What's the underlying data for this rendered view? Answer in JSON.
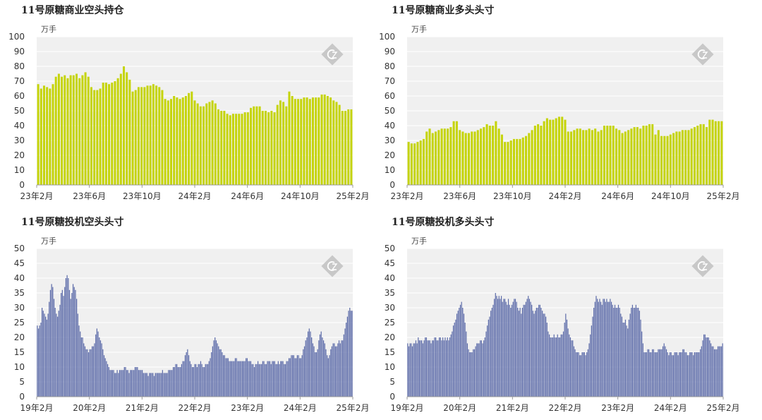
{
  "chart_data": [
    {
      "type": "bar",
      "title": "11号原糖商业空头持仓",
      "unit": "万手",
      "ylim": [
        0,
        100
      ],
      "yticks": [
        0,
        10,
        20,
        30,
        40,
        50,
        60,
        70,
        80,
        90,
        100
      ],
      "xticks": [
        "23年2月",
        "23年6月",
        "23年10月",
        "24年2月",
        "24年6月",
        "24年10月",
        "25年2月"
      ],
      "x_start": "2023-02",
      "x_end": "2025-02",
      "frequency": "weekly",
      "grid": true,
      "color": "#c5d40a",
      "values": [
        68,
        65,
        67,
        66,
        65,
        68,
        73,
        75,
        73,
        74,
        72,
        74,
        74,
        75,
        72,
        74,
        76,
        73,
        66,
        64,
        64,
        65,
        69,
        69,
        68,
        69,
        70,
        72,
        75,
        80,
        76,
        71,
        63,
        64,
        66,
        66,
        66,
        67,
        67,
        68,
        67,
        66,
        64,
        58,
        57,
        58,
        60,
        59,
        58,
        59,
        60,
        62,
        63,
        57,
        55,
        53,
        53,
        55,
        56,
        57,
        55,
        51,
        50,
        50,
        48,
        47,
        48,
        48,
        48,
        48,
        49,
        49,
        52,
        53,
        53,
        53,
        50,
        50,
        49,
        50,
        49,
        54,
        57,
        56,
        53,
        63,
        60,
        58,
        58,
        58,
        59,
        59,
        58,
        59,
        59,
        59,
        61,
        61,
        60,
        59,
        57,
        56,
        54,
        50,
        50,
        51,
        51
      ]
    },
    {
      "type": "bar",
      "title": "11号原糖商业多头头寸",
      "unit": "万手",
      "ylim": [
        0,
        100
      ],
      "yticks": [
        0,
        10,
        20,
        30,
        40,
        50,
        60,
        70,
        80,
        90,
        100
      ],
      "xticks": [
        "23年2月",
        "23年6月",
        "23年10月",
        "24年2月",
        "24年6月",
        "24年10月",
        "25年2月"
      ],
      "x_start": "2023-02",
      "x_end": "2025-02",
      "frequency": "weekly",
      "grid": true,
      "color": "#c5d40a",
      "values": [
        29,
        28,
        28,
        29,
        30,
        31,
        36,
        38,
        35,
        36,
        37,
        38,
        38,
        38,
        39,
        43,
        43,
        37,
        36,
        35,
        35,
        36,
        36,
        37,
        38,
        39,
        41,
        40,
        40,
        43,
        38,
        34,
        29,
        29,
        30,
        31,
        31,
        31,
        32,
        33,
        35,
        37,
        40,
        41,
        40,
        43,
        45,
        44,
        44,
        45,
        46,
        46,
        44,
        36,
        36,
        37,
        38,
        38,
        37,
        37,
        38,
        37,
        38,
        36,
        37,
        40,
        40,
        40,
        40,
        38,
        37,
        35,
        36,
        37,
        38,
        39,
        39,
        38,
        40,
        40,
        41,
        41,
        34,
        37,
        33,
        33,
        33,
        34,
        35,
        36,
        36,
        37,
        37,
        37,
        38,
        39,
        40,
        41,
        41,
        39,
        44,
        44,
        43,
        43,
        43
      ]
    },
    {
      "type": "bar",
      "title": "11号原糖投机空头头寸",
      "unit": "万手",
      "ylim": [
        0,
        50
      ],
      "yticks": [
        0,
        5,
        10,
        15,
        20,
        25,
        30,
        35,
        40,
        45,
        50
      ],
      "xticks": [
        "19年2月",
        "20年2月",
        "21年2月",
        "22年2月",
        "23年2月",
        "24年2月",
        "25年2月"
      ],
      "x_start": "2019-02",
      "x_end": "2025-02",
      "frequency": "weekly",
      "grid": true,
      "color": "#5b6aa8",
      "values": [
        24,
        23,
        24,
        25,
        30,
        29,
        28,
        27,
        26,
        28,
        32,
        36,
        38,
        37,
        33,
        30,
        28,
        27,
        29,
        31,
        35,
        36,
        34,
        37,
        40,
        41,
        40,
        36,
        33,
        35,
        38,
        37,
        36,
        33,
        28,
        24,
        22,
        20,
        20,
        18,
        17,
        16,
        16,
        15,
        16,
        16,
        17,
        17,
        18,
        21,
        23,
        22,
        20,
        19,
        18,
        16,
        14,
        13,
        12,
        11,
        10,
        9,
        9,
        9,
        9,
        8,
        8,
        9,
        8,
        9,
        9,
        9,
        9,
        10,
        10,
        9,
        9,
        8,
        9,
        9,
        9,
        9,
        10,
        10,
        10,
        9,
        9,
        9,
        9,
        8,
        8,
        8,
        8,
        7,
        8,
        8,
        8,
        8,
        7,
        8,
        8,
        8,
        8,
        8,
        8,
        9,
        8,
        8,
        8,
        8,
        9,
        9,
        9,
        9,
        10,
        10,
        11,
        11,
        10,
        10,
        10,
        11,
        12,
        12,
        14,
        15,
        16,
        14,
        12,
        11,
        10,
        10,
        11,
        11,
        10,
        11,
        11,
        12,
        11,
        10,
        10,
        11,
        11,
        11,
        12,
        13,
        15,
        17,
        19,
        20,
        19,
        18,
        17,
        16,
        16,
        15,
        14,
        14,
        13,
        13,
        13,
        12,
        12,
        12,
        12,
        12,
        13,
        13,
        12,
        12,
        12,
        12,
        12,
        12,
        12,
        13,
        13,
        12,
        12,
        12,
        11,
        11,
        10,
        11,
        11,
        12,
        11,
        11,
        11,
        12,
        12,
        11,
        11,
        12,
        12,
        12,
        11,
        12,
        12,
        12,
        11,
        11,
        12,
        11,
        12,
        12,
        12,
        11,
        11,
        12,
        12,
        13,
        13,
        14,
        14,
        14,
        13,
        13,
        14,
        14,
        13,
        13,
        14,
        16,
        17,
        19,
        20,
        22,
        23,
        22,
        20,
        18,
        17,
        15,
        15,
        16,
        19,
        21,
        22,
        20,
        19,
        18,
        16,
        14,
        13,
        14,
        16,
        17,
        18,
        18,
        17,
        17,
        18,
        19,
        18,
        19,
        19,
        21,
        23,
        25,
        27,
        29,
        30,
        29,
        29
      ]
    },
    {
      "type": "bar",
      "title": "11号原糖投机多头头寸",
      "unit": "万手",
      "ylim": [
        0,
        50
      ],
      "yticks": [
        0,
        5,
        10,
        15,
        20,
        25,
        30,
        35,
        40,
        45,
        50
      ],
      "xticks": [
        "19年2月",
        "20年2月",
        "21年2月",
        "22年2月",
        "23年2月",
        "24年2月",
        "25年2月"
      ],
      "x_start": "2019-02",
      "x_end": "2025-02",
      "frequency": "weekly",
      "grid": true,
      "color": "#5b6aa8",
      "values": [
        18,
        17,
        18,
        18,
        17,
        18,
        18,
        19,
        18,
        20,
        19,
        19,
        19,
        18,
        19,
        20,
        20,
        19,
        19,
        19,
        18,
        19,
        19,
        20,
        20,
        19,
        19,
        20,
        20,
        19,
        20,
        19,
        20,
        19,
        20,
        19,
        20,
        21,
        22,
        24,
        25,
        26,
        28,
        29,
        30,
        31,
        32,
        30,
        28,
        25,
        22,
        18,
        16,
        15,
        15,
        15,
        16,
        16,
        17,
        18,
        18,
        18,
        19,
        19,
        18,
        19,
        20,
        22,
        24,
        26,
        27,
        29,
        30,
        31,
        33,
        35,
        34,
        33,
        34,
        33,
        34,
        32,
        33,
        33,
        32,
        31,
        33,
        31,
        30,
        31,
        32,
        33,
        33,
        32,
        30,
        29,
        30,
        28,
        30,
        31,
        31,
        32,
        33,
        34,
        33,
        32,
        31,
        29,
        28,
        29,
        30,
        30,
        31,
        31,
        30,
        29,
        28,
        28,
        27,
        25,
        22,
        21,
        20,
        20,
        20,
        21,
        20,
        20,
        21,
        20,
        20,
        21,
        21,
        22,
        25,
        28,
        26,
        23,
        21,
        20,
        19,
        19,
        17,
        16,
        15,
        15,
        15,
        14,
        14,
        15,
        15,
        15,
        14,
        15,
        16,
        18,
        21,
        24,
        27,
        30,
        32,
        34,
        33,
        32,
        33,
        32,
        31,
        33,
        33,
        32,
        33,
        32,
        32,
        33,
        32,
        31,
        30,
        31,
        30,
        30,
        31,
        30,
        28,
        27,
        25,
        25,
        26,
        24,
        23,
        26,
        28,
        30,
        31,
        30,
        30,
        31,
        30,
        30,
        29,
        26,
        22,
        18,
        15,
        15,
        15,
        16,
        16,
        15,
        15,
        16,
        16,
        15,
        15,
        15,
        16,
        16,
        16,
        16,
        17,
        18,
        17,
        16,
        15,
        14,
        15,
        15,
        14,
        14,
        15,
        15,
        15,
        14,
        15,
        15,
        15,
        16,
        16,
        15,
        15,
        14,
        14,
        15,
        15,
        15,
        14,
        15,
        15,
        15,
        15,
        15,
        16,
        17,
        19,
        21,
        21,
        20,
        20,
        20,
        19,
        18,
        17,
        17,
        16,
        16,
        16,
        17,
        17,
        17,
        17,
        18
      ]
    }
  ]
}
